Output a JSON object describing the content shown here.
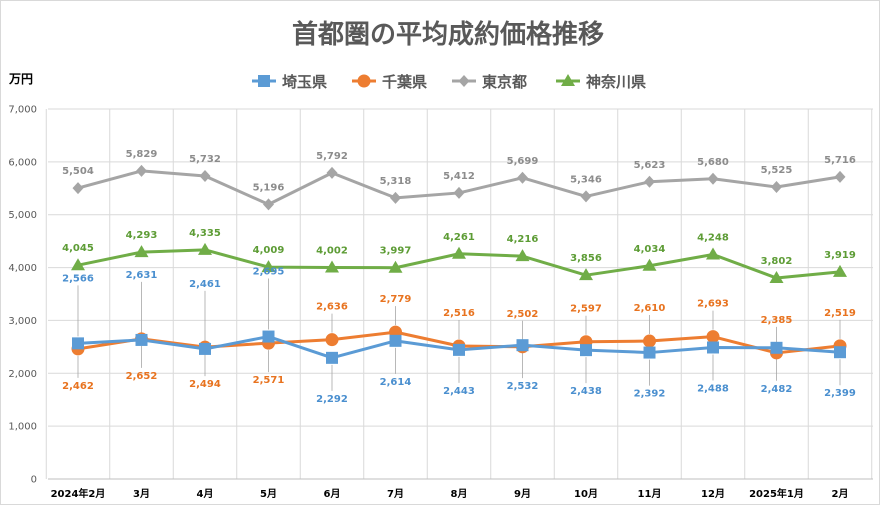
{
  "chart_data": {
    "type": "line",
    "title": "首都圏の平均成約価格推移",
    "ylabel": "万円",
    "xlabel": "",
    "ylim": [
      0,
      7000
    ],
    "ytick_step": 1000,
    "yticks": [
      "0",
      "1,000",
      "2,000",
      "3,000",
      "4,000",
      "5,000",
      "6,000",
      "7,000"
    ],
    "categories": [
      "2024年2月",
      "3月",
      "4月",
      "5月",
      "6月",
      "7月",
      "8月",
      "9月",
      "10月",
      "11月",
      "12月",
      "2025年1月",
      "2月"
    ],
    "grid": true,
    "legend": "top",
    "series": [
      {
        "name": "埼玉県",
        "color": "#5b9bd5",
        "label_color": "#4a8fcf",
        "marker": "square",
        "values": [
          2566,
          2631,
          2461,
          2695,
          2292,
          2614,
          2443,
          2532,
          2438,
          2392,
          2488,
          2482,
          2399
        ],
        "labels": [
          "2,566",
          "2,631",
          "2,461",
          "2,695",
          "2,292",
          "2,614",
          "2,443",
          "2,532",
          "2,438",
          "2,392",
          "2,488",
          "2,482",
          "2,399"
        ],
        "label_pos": [
          "up",
          "up",
          "up",
          "up",
          "down",
          "down",
          "down",
          "down",
          "down",
          "down",
          "down",
          "down",
          "down"
        ]
      },
      {
        "name": "千葉県",
        "color": "#ed7d31",
        "label_color": "#e8731f",
        "marker": "circle",
        "values": [
          2462,
          2652,
          2494,
          2571,
          2636,
          2779,
          2516,
          2502,
          2597,
          2610,
          2693,
          2385,
          2519
        ],
        "labels": [
          "2,462",
          "2,652",
          "2,494",
          "2,571",
          "2,636",
          "2,779",
          "2,516",
          "2,502",
          "2,597",
          "2,610",
          "2,693",
          "2,385",
          "2,519"
        ],
        "label_pos": [
          "down",
          "down",
          "down",
          "down",
          "up",
          "up",
          "up",
          "up",
          "up",
          "up",
          "up",
          "up",
          "up"
        ]
      },
      {
        "name": "東京都",
        "color": "#a5a5a5",
        "label_color": "#8c8c8c",
        "marker": "diamond",
        "values": [
          5504,
          5829,
          5732,
          5196,
          5792,
          5318,
          5412,
          5699,
          5346,
          5623,
          5680,
          5525,
          5716
        ],
        "labels": [
          "5,504",
          "5,829",
          "5,732",
          "5,196",
          "5,792",
          "5,318",
          "5,412",
          "5,699",
          "5,346",
          "5,623",
          "5,680",
          "5,525",
          "5,716"
        ],
        "label_pos": [
          "up",
          "up",
          "up",
          "up",
          "up",
          "up",
          "up",
          "up",
          "up",
          "up",
          "up",
          "up",
          "up"
        ]
      },
      {
        "name": "神奈川県",
        "color": "#70ad47",
        "label_color": "#5d9c35",
        "marker": "triangle",
        "values": [
          4045,
          4293,
          4335,
          4009,
          4002,
          3997,
          4261,
          4216,
          3856,
          4034,
          4248,
          3802,
          3919
        ],
        "labels": [
          "4,045",
          "4,293",
          "4,335",
          "4,009",
          "4,002",
          "3,997",
          "4,261",
          "4,216",
          "3,856",
          "4,034",
          "4,248",
          "3,802",
          "3,919"
        ],
        "label_pos": [
          "up",
          "up",
          "up",
          "up",
          "up",
          "up",
          "up",
          "up",
          "up",
          "up",
          "up",
          "up",
          "up"
        ]
      }
    ]
  }
}
